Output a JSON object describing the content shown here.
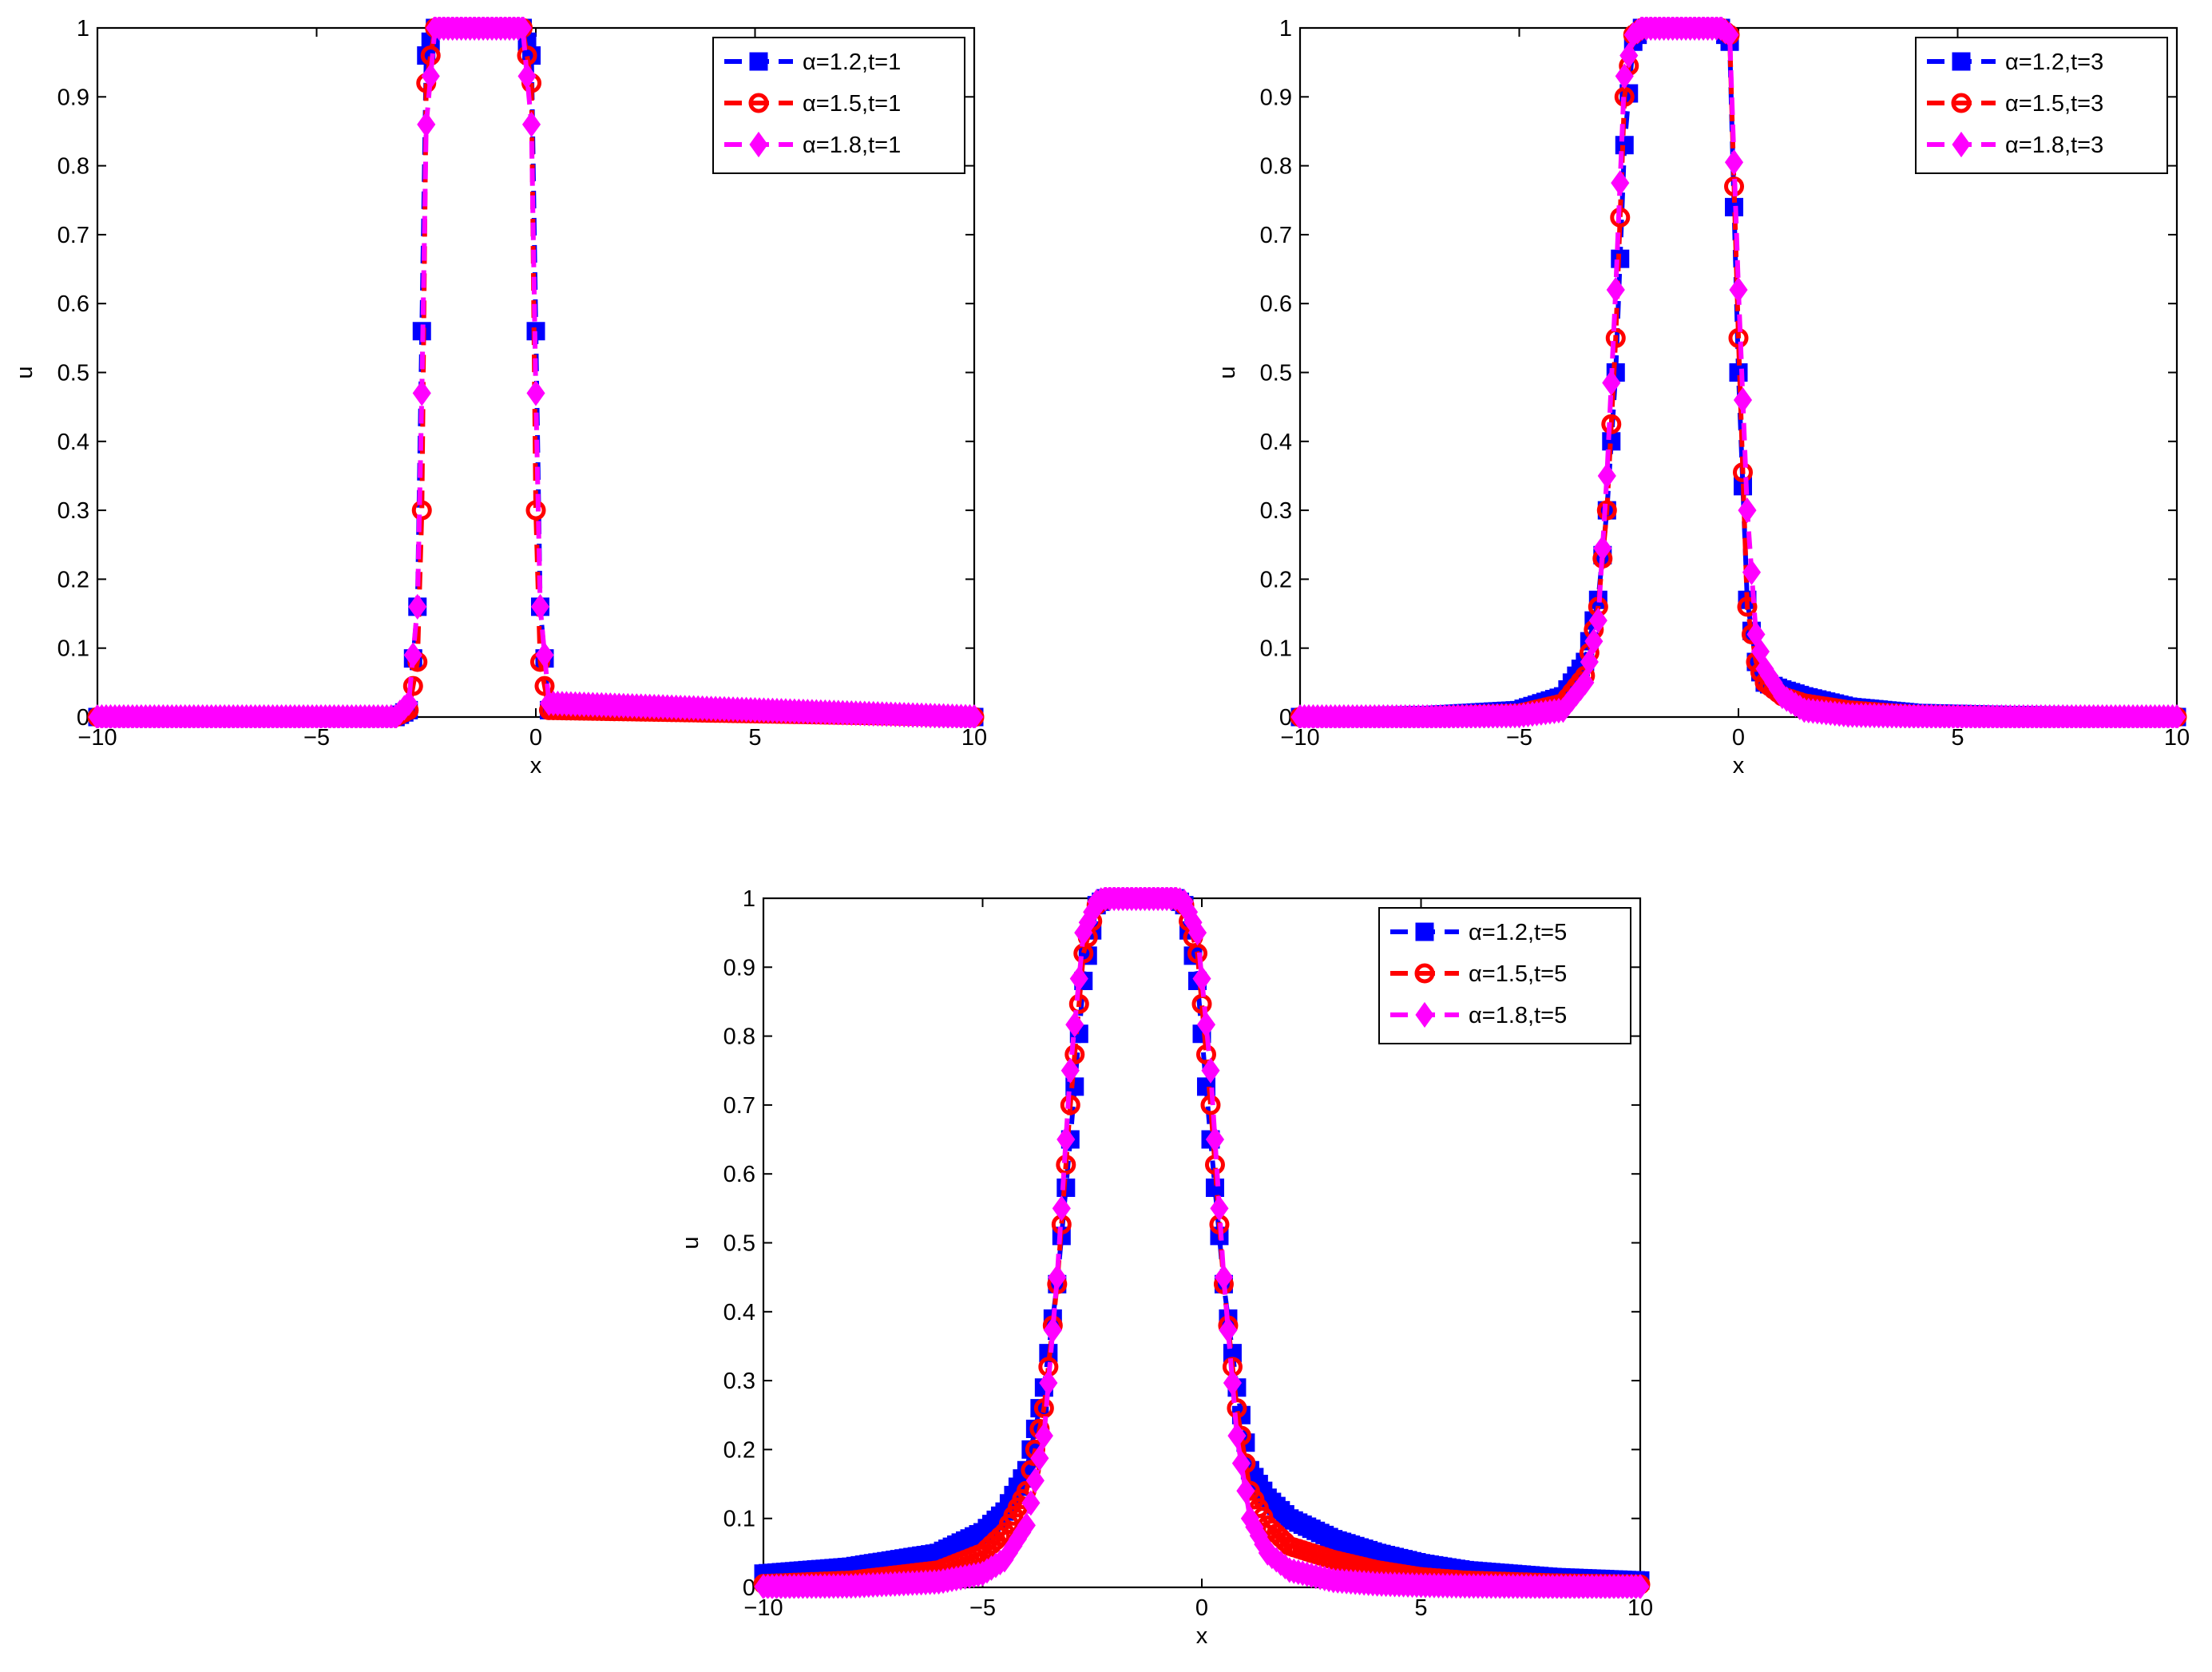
{
  "chart_data": [
    {
      "type": "line",
      "xlabel": "x",
      "ylabel": "u",
      "xlim": [
        -10,
        10
      ],
      "ylim": [
        0,
        1
      ],
      "xticks": [
        -10,
        -5,
        0,
        5,
        10
      ],
      "xtick_labels": [
        "−10",
        "−5",
        "0",
        "5",
        "10"
      ],
      "yticks": [
        0,
        0.1,
        0.2,
        0.3,
        0.4,
        0.5,
        0.6,
        0.7,
        0.8,
        0.9,
        1
      ],
      "ytick_labels": [
        "0",
        "0.1",
        "0.2",
        "0.3",
        "0.4",
        "0.5",
        "0.6",
        "0.7",
        "0.8",
        "0.9",
        "1"
      ],
      "grid": false,
      "legend_position": "top-right",
      "series": [
        {
          "name": "α=1.2,t=1",
          "color": "#0000ff",
          "marker": "square",
          "x": [
            -10,
            -3.2,
            -2.9,
            -2.7,
            -2.5,
            -2.3,
            -0.3,
            -0.1,
            0.1,
            0.3,
            10
          ],
          "y": [
            0,
            0,
            0.01,
            0.16,
            0.96,
            1,
            1,
            0.96,
            0.16,
            0.01,
            0
          ]
        },
        {
          "name": "α=1.5,t=1",
          "color": "#ff0000",
          "marker": "circle",
          "x": [
            -10,
            -3.2,
            -2.9,
            -2.7,
            -2.6,
            -2.5,
            -2.3,
            -0.3,
            -0.1,
            0.0,
            0.1,
            0.3,
            10
          ],
          "y": [
            0,
            0,
            0.01,
            0.08,
            0.3,
            0.92,
            1,
            1,
            0.92,
            0.3,
            0.08,
            0.01,
            0
          ]
        },
        {
          "name": "α=1.8,t=1",
          "color": "#ff00ff",
          "marker": "diamond",
          "x": [
            -10,
            -3.2,
            -2.9,
            -2.7,
            -2.6,
            -2.5,
            -2.3,
            -0.3,
            -0.1,
            0.0,
            0.1,
            0.3,
            10
          ],
          "y": [
            0,
            0,
            0.02,
            0.16,
            0.47,
            0.86,
            1,
            1,
            0.86,
            0.47,
            0.16,
            0.02,
            0
          ]
        }
      ]
    },
    {
      "type": "line",
      "xlabel": "x",
      "ylabel": "u",
      "xlim": [
        -10,
        10
      ],
      "ylim": [
        0,
        1
      ],
      "xticks": [
        -10,
        -5,
        0,
        5,
        10
      ],
      "xtick_labels": [
        "−10",
        "−5",
        "0",
        "5",
        "10"
      ],
      "yticks": [
        0,
        0.1,
        0.2,
        0.3,
        0.4,
        0.5,
        0.6,
        0.7,
        0.8,
        0.9,
        1
      ],
      "ytick_labels": [
        "0",
        "0.1",
        "0.2",
        "0.3",
        "0.4",
        "0.5",
        "0.6",
        "0.7",
        "0.8",
        "0.9",
        "1"
      ],
      "grid": false,
      "legend_position": "top-right",
      "series": [
        {
          "name": "α=1.2,t=3",
          "color": "#0000ff",
          "marker": "square",
          "x": [
            -10,
            -7,
            -5,
            -4,
            -3.5,
            -3.2,
            -3.0,
            -2.8,
            -2.6,
            -2.4,
            -2.2,
            -0.4,
            -0.2,
            0.0,
            0.2,
            0.4,
            0.6,
            1.0,
            1.5,
            2.5,
            4,
            6,
            10
          ],
          "y": [
            0,
            0.003,
            0.01,
            0.03,
            0.08,
            0.17,
            0.3,
            0.5,
            0.83,
            0.98,
            1,
            1,
            0.98,
            0.5,
            0.17,
            0.08,
            0.05,
            0.04,
            0.03,
            0.015,
            0.006,
            0.003,
            0
          ]
        },
        {
          "name": "α=1.5,t=3",
          "color": "#ff0000",
          "marker": "circle",
          "x": [
            -10,
            -7,
            -5,
            -4,
            -3.5,
            -3.2,
            -3.0,
            -2.8,
            -2.6,
            -2.4,
            -2.2,
            -0.4,
            -0.2,
            0.0,
            0.2,
            0.4,
            0.6,
            1.0,
            1.5,
            2.5,
            4,
            6,
            10
          ],
          "y": [
            0,
            0.001,
            0.005,
            0.02,
            0.06,
            0.16,
            0.3,
            0.55,
            0.9,
            0.99,
            1,
            1,
            0.99,
            0.55,
            0.16,
            0.08,
            0.05,
            0.03,
            0.02,
            0.01,
            0.003,
            0.001,
            0
          ]
        },
        {
          "name": "α=1.8,t=3",
          "color": "#ff00ff",
          "marker": "diamond",
          "x": [
            -10,
            -7,
            -5,
            -4,
            -3.5,
            -3.2,
            -3.0,
            -2.8,
            -2.6,
            -2.4,
            -2.2,
            -0.4,
            -0.2,
            0.0,
            0.2,
            0.4,
            0.6,
            1.0,
            1.5,
            2.5,
            4,
            6,
            10
          ],
          "y": [
            0,
            0,
            0.002,
            0.01,
            0.05,
            0.14,
            0.35,
            0.62,
            0.93,
            0.99,
            1,
            1,
            0.99,
            0.62,
            0.3,
            0.12,
            0.07,
            0.03,
            0.01,
            0.003,
            0.001,
            0,
            0
          ]
        }
      ]
    },
    {
      "type": "line",
      "xlabel": "x",
      "ylabel": "u",
      "xlim": [
        -10,
        10
      ],
      "ylim": [
        0,
        1
      ],
      "xticks": [
        -10,
        -5,
        0,
        5,
        10
      ],
      "xtick_labels": [
        "−10",
        "−5",
        "0",
        "5",
        "10"
      ],
      "yticks": [
        0,
        0.1,
        0.2,
        0.3,
        0.4,
        0.5,
        0.6,
        0.7,
        0.8,
        0.9,
        1
      ],
      "ytick_labels": [
        "0",
        "0.1",
        "0.2",
        "0.3",
        "0.4",
        "0.5",
        "0.6",
        "0.7",
        "0.8",
        "0.9",
        "1"
      ],
      "grid": false,
      "legend_position": "top-right",
      "series": [
        {
          "name": "α=1.2,t=5",
          "color": "#0000ff",
          "marker": "square",
          "x": [
            -10,
            -8,
            -6,
            -5,
            -4.5,
            -4,
            -3.6,
            -3.3,
            -3.0,
            -2.7,
            -2.4,
            -2.2,
            -0.6,
            -0.4,
            -0.1,
            0.2,
            0.5,
            0.8,
            1.1,
            1.5,
            2,
            3,
            4,
            5,
            6,
            8,
            10
          ],
          "y": [
            0.02,
            0.03,
            0.05,
            0.08,
            0.11,
            0.17,
            0.29,
            0.44,
            0.65,
            0.88,
            0.99,
            1,
            1,
            0.99,
            0.88,
            0.65,
            0.44,
            0.29,
            0.17,
            0.13,
            0.1,
            0.07,
            0.05,
            0.035,
            0.025,
            0.015,
            0.01
          ]
        },
        {
          "name": "α=1.5,t=5",
          "color": "#ff0000",
          "marker": "circle",
          "x": [
            -10,
            -8,
            -6,
            -5,
            -4.5,
            -4,
            -3.6,
            -3.3,
            -3.0,
            -2.7,
            -2.4,
            -2.2,
            -0.6,
            -0.4,
            -0.1,
            0.2,
            0.5,
            0.8,
            1.1,
            1.5,
            2,
            3,
            4,
            5,
            6,
            8,
            10
          ],
          "y": [
            0.005,
            0.01,
            0.025,
            0.05,
            0.08,
            0.14,
            0.26,
            0.44,
            0.7,
            0.92,
            0.99,
            1,
            1,
            0.99,
            0.92,
            0.7,
            0.44,
            0.26,
            0.14,
            0.09,
            0.06,
            0.04,
            0.025,
            0.015,
            0.01,
            0.006,
            0.004
          ]
        },
        {
          "name": "α=1.8,t=5",
          "color": "#ff00ff",
          "marker": "diamond",
          "x": [
            -10,
            -8,
            -6,
            -5,
            -4.5,
            -4,
            -3.6,
            -3.3,
            -3.0,
            -2.7,
            -2.4,
            -2.2,
            -0.6,
            -0.4,
            -0.1,
            0.2,
            0.5,
            0.8,
            1.1,
            1.5,
            2,
            3,
            4,
            5,
            6,
            8,
            10
          ],
          "y": [
            0.001,
            0.002,
            0.008,
            0.02,
            0.04,
            0.09,
            0.22,
            0.45,
            0.75,
            0.95,
            0.995,
            1,
            1,
            0.995,
            0.95,
            0.75,
            0.45,
            0.22,
            0.1,
            0.05,
            0.025,
            0.01,
            0.005,
            0.003,
            0.002,
            0.001,
            0.001
          ]
        }
      ]
    }
  ]
}
